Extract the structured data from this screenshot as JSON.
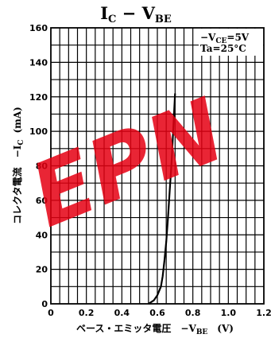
{
  "chart_data": {
    "type": "line",
    "title": {
      "main": "I",
      "sub1": "C",
      "dash": " − V",
      "sub2": "BE"
    },
    "xlabel": {
      "prefix": "ベース・エミッタ電圧　−V",
      "sub": "BE",
      "unit": "(V)"
    },
    "ylabel": {
      "prefix": "コレクタ電流　−I",
      "sub": "C",
      "unit": "(mA)"
    },
    "xlim": [
      0,
      1.2
    ],
    "ylim": [
      0,
      160
    ],
    "x_ticks": [
      "0",
      "0.2",
      "0.4",
      "0.6",
      "0.8",
      "1.0",
      "1.2"
    ],
    "y_ticks": [
      "0",
      "20",
      "40",
      "60",
      "80",
      "100",
      "120",
      "140",
      "160"
    ],
    "grid": true,
    "annotation": {
      "line1": {
        "prefix": "−V",
        "sub": "CE",
        "suffix": "=5V"
      },
      "line2": "Ta=25°C"
    },
    "series": [
      {
        "x": [
          0.55,
          0.58,
          0.6,
          0.62,
          0.63,
          0.64,
          0.65,
          0.66,
          0.67,
          0.68,
          0.685,
          0.69,
          0.695,
          0.7
        ],
        "y": [
          0,
          2,
          5,
          10,
          16,
          25,
          36,
          50,
          66,
          82,
          92,
          102,
          112,
          122
        ]
      }
    ]
  },
  "watermark": "EPN"
}
